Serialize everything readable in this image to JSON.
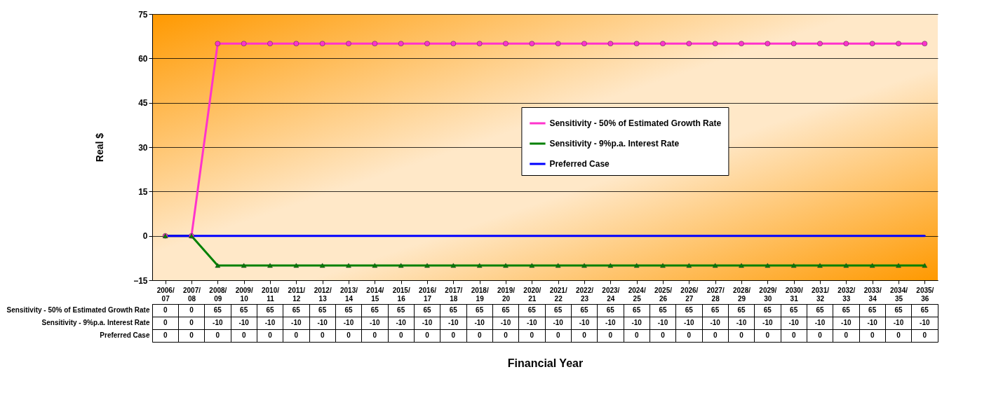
{
  "chart_data": {
    "type": "line",
    "xlabel": "Financial Year",
    "ylabel": "Real $",
    "categories": [
      "2006/07",
      "2007/08",
      "2008/09",
      "2009/10",
      "2010/11",
      "2011/12",
      "2012/13",
      "2013/14",
      "2014/15",
      "2015/16",
      "2016/17",
      "2017/18",
      "2018/19",
      "2019/20",
      "2020/21",
      "2021/22",
      "2022/23",
      "2023/24",
      "2024/25",
      "2025/26",
      "2026/27",
      "2027/28",
      "2028/29",
      "2029/30",
      "2030/31",
      "2031/32",
      "2032/33",
      "2033/34",
      "2034/35",
      "2035/36"
    ],
    "series": [
      {
        "name": "Sensitivity - 50% of Estimated Growth Rate",
        "color": "#ff33cc",
        "marker": "circle",
        "values": [
          0,
          0,
          65,
          65,
          65,
          65,
          65,
          65,
          65,
          65,
          65,
          65,
          65,
          65,
          65,
          65,
          65,
          65,
          65,
          65,
          65,
          65,
          65,
          65,
          65,
          65,
          65,
          65,
          65,
          65
        ]
      },
      {
        "name": "Sensitivity - 9%p.a. Interest Rate",
        "color": "#008000",
        "marker": "triangle",
        "values": [
          0,
          0,
          -10,
          -10,
          -10,
          -10,
          -10,
          -10,
          -10,
          -10,
          -10,
          -10,
          -10,
          -10,
          -10,
          -10,
          -10,
          -10,
          -10,
          -10,
          -10,
          -10,
          -10,
          -10,
          -10,
          -10,
          -10,
          -10,
          -10,
          -10
        ]
      },
      {
        "name": "Preferred Case",
        "color": "#0000ff",
        "marker": "none",
        "values": [
          0,
          0,
          0,
          0,
          0,
          0,
          0,
          0,
          0,
          0,
          0,
          0,
          0,
          0,
          0,
          0,
          0,
          0,
          0,
          0,
          0,
          0,
          0,
          0,
          0,
          0,
          0,
          0,
          0,
          0
        ]
      }
    ],
    "ylim": [
      -15,
      75
    ],
    "yticks": [
      -15,
      0,
      15,
      30,
      45,
      60,
      75
    ],
    "grid": "y",
    "legend": "right",
    "data_labels": true
  }
}
